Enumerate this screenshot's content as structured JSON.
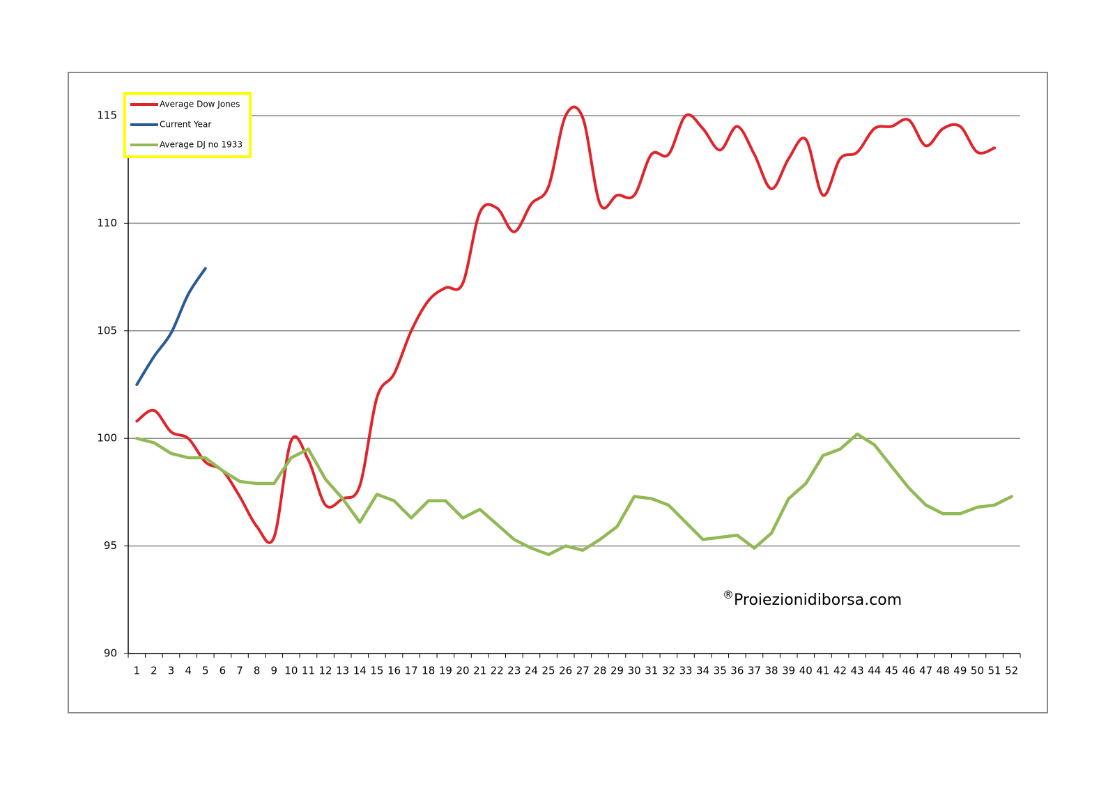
{
  "chart_data": {
    "type": "line",
    "categories": [
      "1",
      "2",
      "3",
      "4",
      "5",
      "6",
      "7",
      "8",
      "9",
      "10",
      "11",
      "12",
      "13",
      "14",
      "15",
      "16",
      "17",
      "18",
      "19",
      "20",
      "21",
      "22",
      "23",
      "24",
      "25",
      "26",
      "27",
      "28",
      "29",
      "30",
      "31",
      "32",
      "33",
      "34",
      "35",
      "36",
      "37",
      "38",
      "39",
      "40",
      "41",
      "42",
      "43",
      "44",
      "45",
      "46",
      "47",
      "48",
      "49",
      "50",
      "51",
      "52"
    ],
    "series": [
      {
        "name": "Average Dow Jones",
        "color": "#e0242b",
        "smooth": true,
        "values": [
          100.8,
          101.3,
          100.3,
          100.0,
          98.9,
          98.5,
          97.3,
          95.9,
          95.4,
          99.9,
          99.0,
          96.9,
          97.2,
          97.8,
          101.9,
          103.0,
          105.0,
          106.4,
          107.0,
          107.2,
          110.5,
          110.7,
          109.6,
          110.9,
          111.7,
          115.0,
          114.9,
          110.9,
          111.3,
          111.3,
          113.2,
          113.2,
          115.0,
          114.4,
          113.4,
          114.5,
          113.2,
          111.6,
          113.0,
          113.9,
          111.3,
          113.0,
          113.3,
          114.4,
          114.5,
          114.8,
          113.6,
          114.4,
          114.5,
          113.3,
          113.5,
          null
        ]
      },
      {
        "name": "Current Year",
        "color": "#2a5a97",
        "smooth": true,
        "values": [
          102.5,
          103.8,
          104.9,
          106.7,
          107.9,
          null,
          null,
          null,
          null,
          null,
          null,
          null,
          null,
          null,
          null,
          null,
          null,
          null,
          null,
          null,
          null,
          null,
          null,
          null,
          null,
          null,
          null,
          null,
          null,
          null,
          null,
          null,
          null,
          null,
          null,
          null,
          null,
          null,
          null,
          null,
          null,
          null,
          null,
          null,
          null,
          null,
          null,
          null,
          null,
          null,
          null,
          null
        ]
      },
      {
        "name": "Average DJ no 1933",
        "color": "#93b957",
        "smooth": false,
        "values": [
          100.0,
          99.8,
          99.3,
          99.1,
          99.1,
          98.5,
          98.0,
          97.9,
          97.9,
          99.1,
          99.5,
          98.1,
          97.2,
          96.1,
          97.4,
          97.1,
          96.3,
          97.1,
          97.1,
          96.3,
          96.7,
          96.0,
          95.3,
          94.9,
          94.6,
          95.0,
          94.8,
          95.3,
          95.9,
          97.3,
          97.2,
          96.9,
          96.1,
          95.3,
          95.4,
          95.5,
          94.9,
          95.6,
          97.2,
          97.9,
          99.2,
          99.5,
          100.2,
          99.7,
          98.7,
          97.7,
          96.9,
          96.5,
          96.5,
          96.8,
          96.9,
          97.3
        ]
      }
    ],
    "ylim": [
      90,
      115
    ],
    "yticks": [
      90,
      95,
      100,
      105,
      110,
      115
    ],
    "grid": true,
    "legend": "top-left",
    "annotation": {
      "symbol": "®",
      "text": "Proiezionidiborsa.com"
    }
  }
}
